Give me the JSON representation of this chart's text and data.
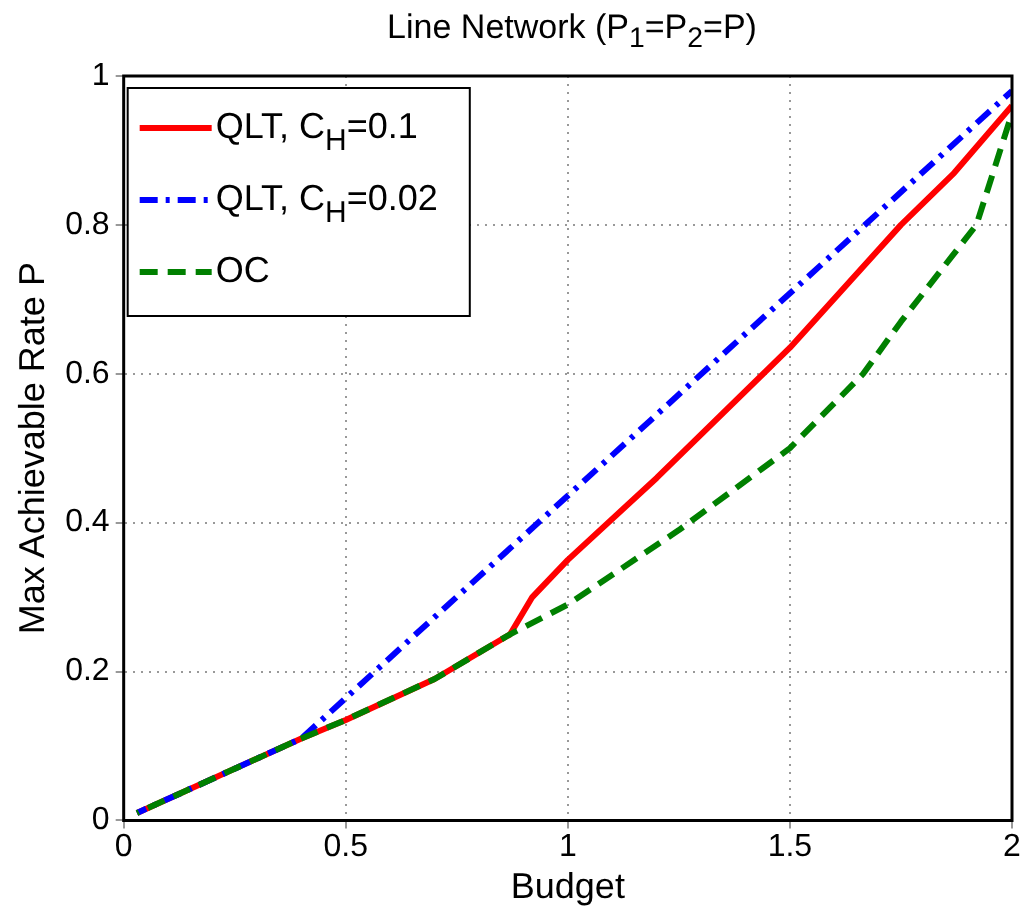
{
  "chart_data": {
    "type": "line",
    "title": "Line Network (P$_{1}$=P$_{2}$=P)",
    "xlabel": "Budget",
    "ylabel": "Max Achievable Rate P",
    "series": [
      {
        "name": "QLT, C$_{H}$=0.1",
        "color": "#ff0000",
        "line_style": "solid",
        "x": [
          0.03,
          0.4,
          0.5,
          0.7,
          0.87,
          0.92,
          1,
          1.2,
          1.5,
          1.75,
          1.87,
          2
        ],
        "values": [
          0.01,
          0.11,
          0.135,
          0.19,
          0.25,
          0.3,
          0.35,
          0.46,
          0.635,
          0.8,
          0.87,
          0.96
        ]
      },
      {
        "name": "QLT, C$_{H}$=0.02",
        "color": "#0000ff",
        "line_style": "dashdot",
        "x": [
          0.03,
          0.4,
          2
        ],
        "values": [
          0.01,
          0.11,
          0.98
        ]
      },
      {
        "name": "OC",
        "color": "#008000",
        "line_style": "dashed",
        "x": [
          0.03,
          0.4,
          0.5,
          0.7,
          0.87,
          1,
          1.25,
          1.5,
          1.665,
          1.75,
          1.92,
          2
        ],
        "values": [
          0.01,
          0.11,
          0.135,
          0.19,
          0.25,
          0.29,
          0.39,
          0.5,
          0.6,
          0.67,
          0.8,
          0.95
        ]
      }
    ],
    "xlim": [
      0,
      2
    ],
    "xticks": [
      0,
      0.5,
      1,
      1.5,
      2
    ],
    "ylim": [
      0,
      1
    ],
    "yticks": [
      0,
      0.2,
      0.4,
      0.6,
      0.8,
      1
    ],
    "grid": true,
    "legend": "top left",
    "marker": "none"
  }
}
